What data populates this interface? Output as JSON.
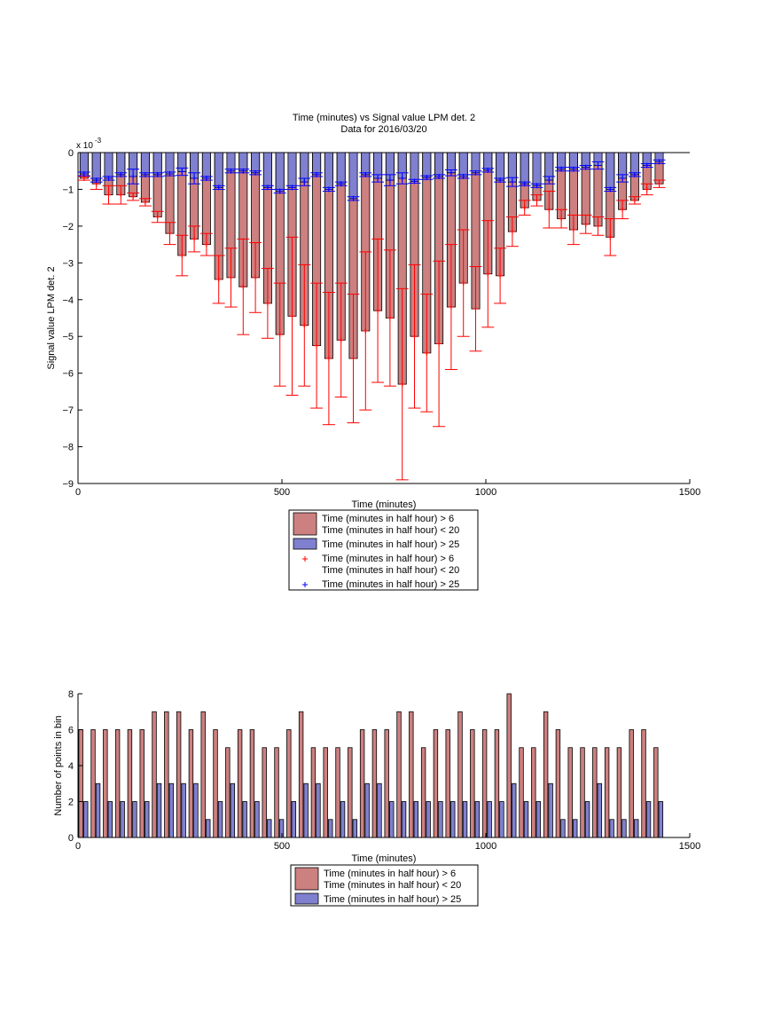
{
  "chart_data": [
    {
      "type": "bar",
      "title": "Time (minutes) vs Signal value LPM det. 2",
      "subtitle": "Data for 2016/03/20",
      "xlabel": "Time (minutes)",
      "ylabel": "Signal value LPM det. 2",
      "y_multiplier_label": "x 10",
      "y_multiplier_exponent": "-3",
      "xlim": [
        0,
        1500
      ],
      "ylim": [
        -9,
        0
      ],
      "xticks": [
        0,
        500,
        1000,
        1500
      ],
      "yticks": [
        0,
        -1,
        -2,
        -3,
        -4,
        -5,
        -6,
        -7,
        -8,
        -9
      ],
      "grid": false,
      "legend_position": "below",
      "legend": [
        {
          "kind": "bar",
          "color": "#cd8080",
          "lines": [
            "Time (minutes in half hour) > 6",
            "Time (minutes in half hour) < 20"
          ]
        },
        {
          "kind": "bar",
          "color": "#8080d0",
          "lines": [
            "Time (minutes in half hour) > 25"
          ]
        },
        {
          "kind": "marker",
          "color": "#ff0000",
          "lines": [
            "Time (minutes in half hour) > 6",
            "Time (minutes in half hour) < 20"
          ]
        },
        {
          "kind": "marker",
          "color": "#0000ff",
          "lines": [
            "Time (minutes in half hour) > 25"
          ]
        }
      ],
      "x": [
        0,
        30,
        60,
        90,
        120,
        150,
        180,
        210,
        240,
        270,
        300,
        330,
        360,
        390,
        420,
        450,
        480,
        510,
        540,
        570,
        600,
        630,
        660,
        690,
        720,
        750,
        780,
        810,
        840,
        870,
        900,
        930,
        960,
        990,
        1020,
        1050,
        1080,
        1110,
        1140,
        1170,
        1200,
        1230,
        1260,
        1290,
        1320,
        1350,
        1380,
        1410
      ],
      "series": [
        {
          "name": "Time (minutes in half hour) > 6 Time (minutes in half hour) < 20",
          "color": "#cd8080",
          "values": [
            -0.7,
            -0.85,
            -1.15,
            -1.15,
            -1.2,
            -1.35,
            -1.75,
            -2.2,
            -2.8,
            -2.35,
            -2.5,
            -3.45,
            -3.4,
            -3.65,
            -3.4,
            -4.1,
            -4.95,
            -4.45,
            -4.7,
            -5.25,
            -5.6,
            -5.1,
            -5.6,
            -4.85,
            -4.3,
            -4.5,
            -6.3,
            -5.0,
            -5.45,
            -5.2,
            -4.2,
            -3.55,
            -4.25,
            -3.3,
            -3.35,
            -2.15,
            -1.5,
            -1.3,
            -1.55,
            -1.8,
            -2.1,
            -1.95,
            -2.0,
            -2.3,
            -1.55,
            -1.3,
            -1.0,
            -0.85
          ],
          "errors": [
            0.05,
            0.15,
            0.25,
            0.25,
            0.1,
            0.1,
            0.15,
            0.3,
            0.55,
            0.35,
            0.3,
            0.65,
            0.8,
            1.3,
            0.95,
            0.95,
            1.4,
            2.15,
            1.65,
            1.7,
            1.8,
            1.55,
            1.75,
            2.15,
            1.95,
            1.85,
            2.6,
            1.95,
            1.6,
            2.25,
            1.7,
            1.45,
            1.15,
            1.45,
            0.75,
            0.4,
            0.2,
            0.15,
            0.5,
            0.25,
            0.4,
            0.25,
            0.25,
            0.5,
            0.25,
            0.1,
            0.15,
            0.1
          ]
        },
        {
          "name": "Time (minutes in half hour) > 25",
          "color": "#8080d0",
          "values": [
            -0.58,
            -0.75,
            -0.7,
            -0.6,
            -0.65,
            -0.6,
            -0.6,
            -0.58,
            -0.52,
            -0.7,
            -0.7,
            -0.95,
            -0.5,
            -0.5,
            -0.55,
            -0.95,
            -1.05,
            -0.95,
            -0.8,
            -0.6,
            -1.0,
            -0.85,
            -1.25,
            -0.6,
            -0.7,
            -0.75,
            -0.7,
            -0.78,
            -0.68,
            -0.65,
            -0.55,
            -0.65,
            -0.55,
            -0.48,
            -0.75,
            -0.8,
            -0.85,
            -0.9,
            -0.75,
            -0.45,
            -0.45,
            -0.4,
            -0.35,
            -1.0,
            -0.7,
            -0.6,
            -0.35,
            -0.25
          ],
          "errors": [
            0.05,
            0.05,
            0.05,
            0.05,
            0.2,
            0.05,
            0.05,
            0.05,
            0.1,
            0.15,
            0.05,
            0.05,
            0.05,
            0.05,
            0.05,
            0.05,
            0.05,
            0.05,
            0.1,
            0.05,
            0.05,
            0.05,
            0.05,
            0.05,
            0.1,
            0.15,
            0.15,
            0.05,
            0.05,
            0.05,
            0.08,
            0.05,
            0.05,
            0.05,
            0.05,
            0.12,
            0.05,
            0.05,
            0.1,
            0.05,
            0.05,
            0.05,
            0.1,
            0.05,
            0.1,
            0.05,
            0.05,
            0.05
          ]
        }
      ]
    },
    {
      "type": "bar",
      "title": "",
      "xlabel": "Time (minutes)",
      "ylabel": "Number of points in bin",
      "xlim": [
        0,
        1500
      ],
      "ylim": [
        0,
        8
      ],
      "xticks": [
        0,
        500,
        1000,
        1500
      ],
      "yticks": [
        0,
        2,
        4,
        6,
        8
      ],
      "grid": false,
      "legend_position": "below",
      "legend": [
        {
          "kind": "bar",
          "color": "#cd8080",
          "lines": [
            "Time (minutes in half hour) > 6",
            "Time (minutes in half hour) < 20"
          ]
        },
        {
          "kind": "bar",
          "color": "#8080d0",
          "lines": [
            "Time (minutes in half hour) > 25"
          ]
        }
      ],
      "x": [
        0,
        30,
        60,
        90,
        120,
        150,
        180,
        210,
        240,
        270,
        300,
        330,
        360,
        390,
        420,
        450,
        480,
        510,
        540,
        570,
        600,
        630,
        660,
        690,
        720,
        750,
        780,
        810,
        840,
        870,
        900,
        930,
        960,
        990,
        1020,
        1050,
        1080,
        1110,
        1140,
        1170,
        1200,
        1230,
        1260,
        1290,
        1320,
        1350,
        1380,
        1410
      ],
      "series": [
        {
          "name": "Time (minutes in half hour) > 6 Time (minutes in half hour) < 20",
          "color": "#cd8080",
          "values": [
            6,
            6,
            6,
            6,
            6,
            6,
            7,
            7,
            7,
            6,
            7,
            6,
            5,
            6,
            6,
            5,
            5,
            6,
            7,
            5,
            5,
            5,
            5,
            6,
            6,
            6,
            7,
            7,
            5,
            6,
            6,
            7,
            6,
            6,
            6,
            8,
            5,
            5,
            7,
            6,
            5,
            5,
            5,
            5,
            5,
            6,
            6,
            5
          ]
        },
        {
          "name": "Time (minutes in half hour) > 25",
          "color": "#8080d0",
          "values": [
            2,
            3,
            2,
            2,
            2,
            2,
            3,
            3,
            3,
            3,
            1,
            2,
            3,
            2,
            2,
            1,
            1,
            2,
            3,
            3,
            1,
            2,
            1,
            3,
            3,
            2,
            2,
            2,
            2,
            2,
            2,
            2,
            2,
            2,
            2,
            3,
            2,
            2,
            3,
            1,
            1,
            2,
            3,
            1,
            1,
            1,
            2,
            2
          ]
        }
      ]
    }
  ]
}
